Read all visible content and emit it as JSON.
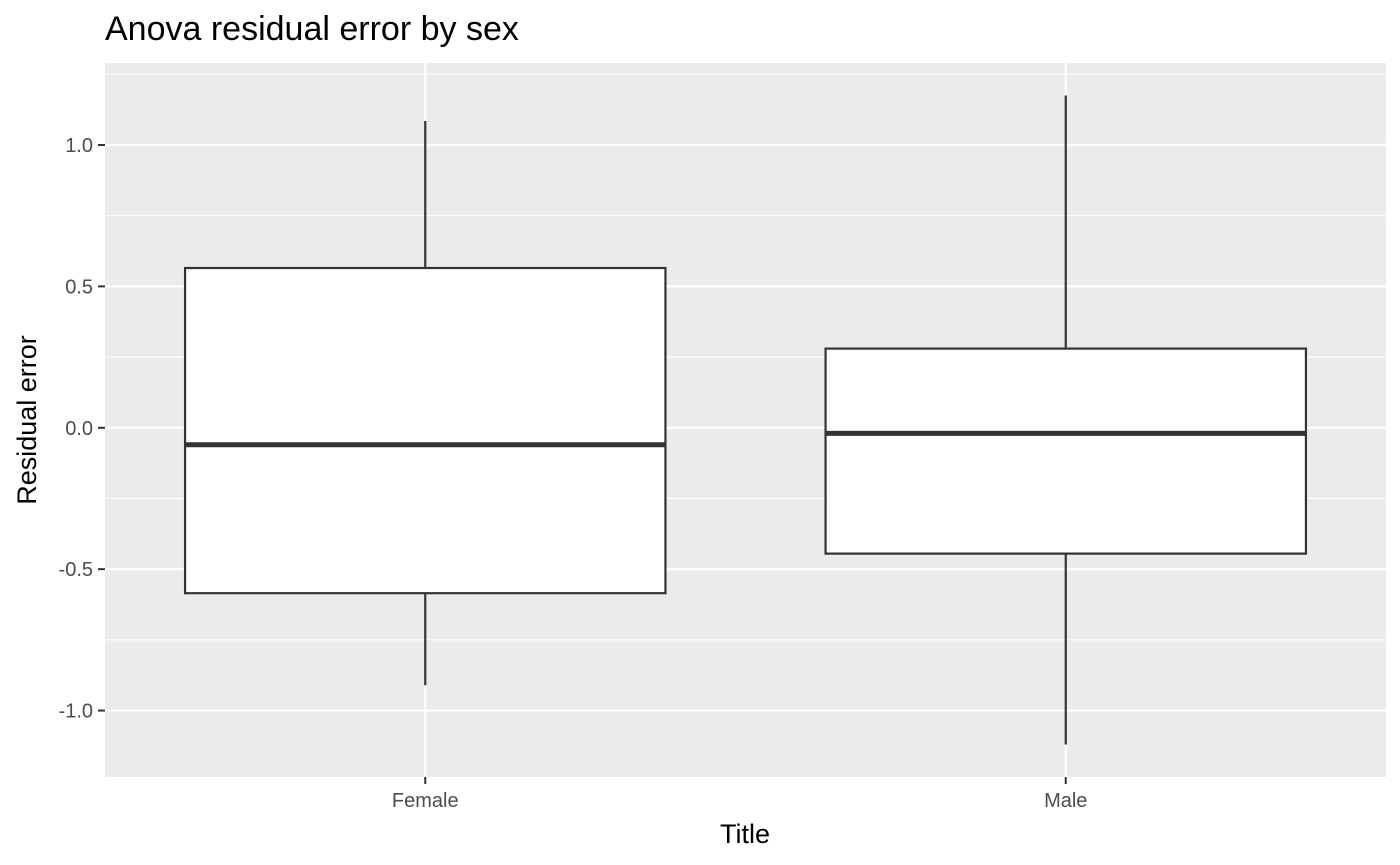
{
  "chart_data": {
    "type": "boxplot",
    "title": "Anova residual error by sex",
    "xlabel": "Title",
    "ylabel": "Residual error",
    "categories": [
      "Female",
      "Male"
    ],
    "boxes": [
      {
        "category": "Female",
        "whisker_low": -0.91,
        "q1": -0.585,
        "median": -0.06,
        "q3": 0.565,
        "whisker_high": 1.085
      },
      {
        "category": "Male",
        "whisker_low": -1.12,
        "q1": -0.445,
        "median": -0.02,
        "q3": 0.28,
        "whisker_high": 1.175
      }
    ],
    "ylim": [
      -1.235,
      1.29
    ],
    "yticks": [
      -1.0,
      -0.5,
      0.0,
      0.5,
      1.0
    ],
    "ytick_labels": [
      "-1.0",
      "-0.5",
      "0.0",
      "0.5",
      "1.0"
    ],
    "grid": true,
    "colors": {
      "panel_background": "#ebebeb",
      "grid_major": "#ffffff",
      "box_fill": "#ffffff",
      "box_stroke": "#333333",
      "tick_label": "#4d4d4d"
    }
  }
}
